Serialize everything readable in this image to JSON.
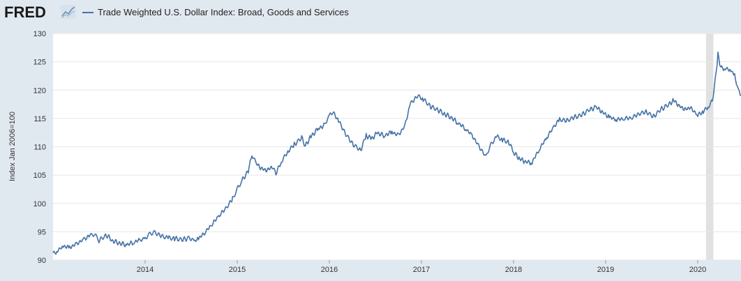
{
  "header": {
    "logo": "FRED",
    "logo_icon": "line-chart-icon"
  },
  "chart_data": {
    "type": "line",
    "title": "",
    "xlabel": "",
    "ylabel": "Index Jan 2006=100",
    "ylim": [
      90,
      130
    ],
    "xlim": [
      2013.0,
      2020.47
    ],
    "yticks": [
      "90",
      "95",
      "100",
      "105",
      "110",
      "115",
      "120",
      "125",
      "130"
    ],
    "xticks": [
      "2014",
      "2015",
      "2016",
      "2017",
      "2018",
      "2019",
      "2020"
    ],
    "grid": true,
    "legend": "top-left",
    "recession_shading": [
      [
        2020.09,
        2020.17
      ]
    ],
    "series": [
      {
        "name": "Trade Weighted U.S. Dollar Index: Broad, Goods and Services",
        "color": "#4572a7",
        "points": [
          [
            2013.0,
            91.2
          ],
          [
            2013.05,
            91.6
          ],
          [
            2013.1,
            92.5
          ],
          [
            2013.18,
            92.2
          ],
          [
            2013.25,
            92.8
          ],
          [
            2013.33,
            93.6
          ],
          [
            2013.4,
            94.3
          ],
          [
            2013.45,
            94.6
          ],
          [
            2013.5,
            93.5
          ],
          [
            2013.58,
            94.4
          ],
          [
            2013.65,
            93.4
          ],
          [
            2013.72,
            93.0
          ],
          [
            2013.8,
            92.7
          ],
          [
            2013.88,
            93.2
          ],
          [
            2013.95,
            93.6
          ],
          [
            2014.0,
            93.8
          ],
          [
            2014.05,
            94.6
          ],
          [
            2014.1,
            94.9
          ],
          [
            2014.18,
            94.2
          ],
          [
            2014.25,
            93.9
          ],
          [
            2014.32,
            93.8
          ],
          [
            2014.4,
            93.6
          ],
          [
            2014.48,
            93.9
          ],
          [
            2014.53,
            93.3
          ],
          [
            2014.58,
            93.8
          ],
          [
            2014.65,
            94.9
          ],
          [
            2014.72,
            96.2
          ],
          [
            2014.8,
            97.8
          ],
          [
            2014.88,
            99.2
          ],
          [
            2014.95,
            100.8
          ],
          [
            2015.0,
            102.5
          ],
          [
            2015.05,
            104.0
          ],
          [
            2015.12,
            105.7
          ],
          [
            2015.16,
            108.5
          ],
          [
            2015.2,
            107.2
          ],
          [
            2015.26,
            106.2
          ],
          [
            2015.32,
            105.8
          ],
          [
            2015.38,
            106.5
          ],
          [
            2015.42,
            105.3
          ],
          [
            2015.48,
            107.4
          ],
          [
            2015.55,
            109.2
          ],
          [
            2015.62,
            110.4
          ],
          [
            2015.7,
            111.6
          ],
          [
            2015.74,
            110.2
          ],
          [
            2015.8,
            111.8
          ],
          [
            2015.88,
            113.2
          ],
          [
            2015.95,
            113.8
          ],
          [
            2016.0,
            115.5
          ],
          [
            2016.04,
            116.1
          ],
          [
            2016.1,
            114.6
          ],
          [
            2016.18,
            112.2
          ],
          [
            2016.26,
            110.4
          ],
          [
            2016.34,
            109.4
          ],
          [
            2016.4,
            112.0
          ],
          [
            2016.46,
            111.4
          ],
          [
            2016.52,
            112.4
          ],
          [
            2016.6,
            112.0
          ],
          [
            2016.68,
            112.6
          ],
          [
            2016.75,
            112.0
          ],
          [
            2016.82,
            113.7
          ],
          [
            2016.88,
            117.6
          ],
          [
            2016.96,
            119.0
          ],
          [
            2017.02,
            118.4
          ],
          [
            2017.1,
            117.1
          ],
          [
            2017.18,
            116.5
          ],
          [
            2017.25,
            115.8
          ],
          [
            2017.32,
            115.2
          ],
          [
            2017.4,
            114.2
          ],
          [
            2017.48,
            113.2
          ],
          [
            2017.55,
            112.0
          ],
          [
            2017.62,
            110.2
          ],
          [
            2017.7,
            108.2
          ],
          [
            2017.75,
            110.3
          ],
          [
            2017.82,
            111.8
          ],
          [
            2017.88,
            111.2
          ],
          [
            2017.95,
            110.8
          ],
          [
            2018.0,
            109.0
          ],
          [
            2018.06,
            108.0
          ],
          [
            2018.12,
            107.4
          ],
          [
            2018.2,
            107.2
          ],
          [
            2018.28,
            109.6
          ],
          [
            2018.36,
            111.6
          ],
          [
            2018.44,
            113.6
          ],
          [
            2018.5,
            114.8
          ],
          [
            2018.58,
            114.6
          ],
          [
            2018.66,
            115.2
          ],
          [
            2018.74,
            115.6
          ],
          [
            2018.82,
            116.5
          ],
          [
            2018.9,
            117.0
          ],
          [
            2018.96,
            116.2
          ],
          [
            2019.04,
            115.2
          ],
          [
            2019.12,
            114.8
          ],
          [
            2019.2,
            115.0
          ],
          [
            2019.28,
            115.1
          ],
          [
            2019.36,
            115.8
          ],
          [
            2019.44,
            116.2
          ],
          [
            2019.52,
            115.3
          ],
          [
            2019.6,
            116.6
          ],
          [
            2019.68,
            117.4
          ],
          [
            2019.74,
            118.2
          ],
          [
            2019.8,
            117.2
          ],
          [
            2019.86,
            116.6
          ],
          [
            2019.92,
            116.9
          ],
          [
            2020.0,
            115.6
          ],
          [
            2020.06,
            116.2
          ],
          [
            2020.12,
            117.2
          ],
          [
            2020.16,
            118.2
          ],
          [
            2020.2,
            123.0
          ],
          [
            2020.22,
            126.3
          ],
          [
            2020.25,
            124.0
          ],
          [
            2020.3,
            123.8
          ],
          [
            2020.35,
            123.7
          ],
          [
            2020.4,
            122.6
          ],
          [
            2020.44,
            120.0
          ],
          [
            2020.47,
            119.0
          ]
        ]
      }
    ]
  }
}
